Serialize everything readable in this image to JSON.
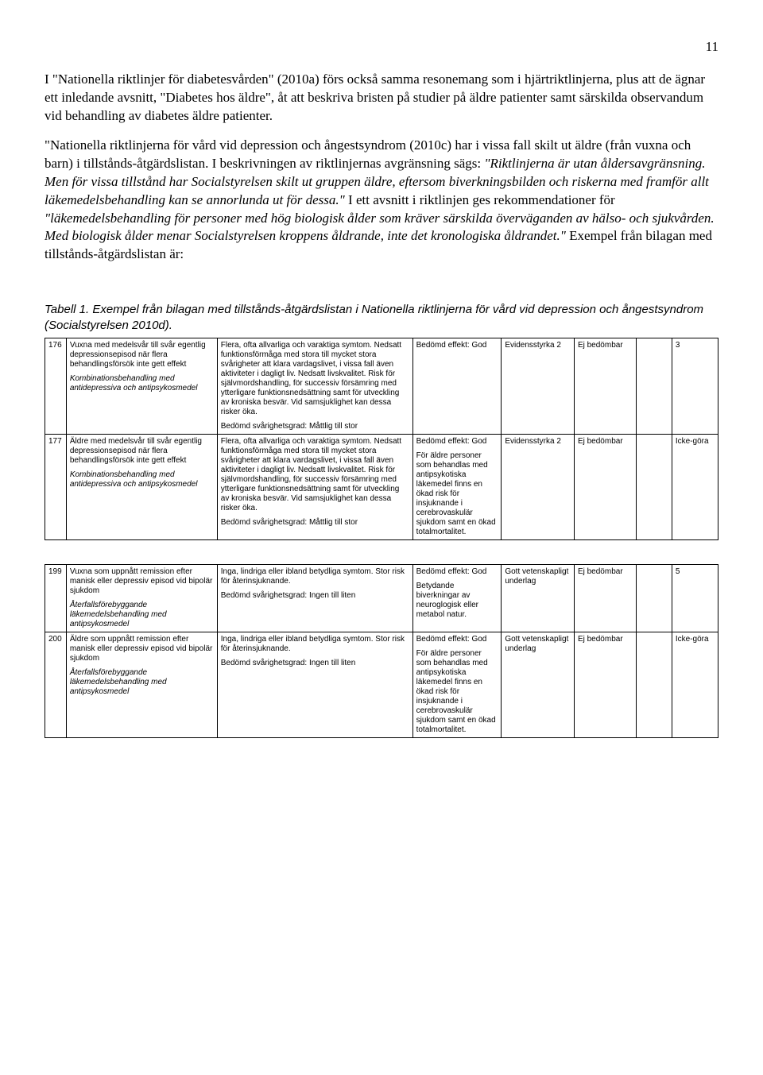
{
  "page_number": "11",
  "para1_a": "I \"Nationella riktlinjer för diabetesvården\" (2010a) förs också samma resonemang som i hjärtriktlinjerna, plus att de ägnar ett inledande avsnitt, \"Diabetes hos äldre\", åt att beskriva bristen på studier på äldre patienter samt särskilda observandum vid behandling av diabetes äldre patienter.",
  "para2_a": "\"Nationella riktlinjerna för vård vid depression och ångestsyndrom (2010c) har i vissa fall skilt ut äldre (från vuxna och barn) i tillstånds-åtgärdslistan. I beskrivningen av riktlinjernas avgränsning sägs: ",
  "para2_b": "\"Riktlinjerna är utan åldersavgränsning. Men för vissa tillstånd har Socialstyrelsen skilt ut gruppen äldre, eftersom biverkningsbilden och riskerna med framför allt läkemedelsbehandling kan se annorlunda ut för dessa.\"",
  "para2_c": " I ett avsnitt i riktlinjen ges rekommendationer för ",
  "para2_d": "\"läkemedelsbehandling för personer med hög biologisk ålder som kräver särskilda överväganden av hälso- och sjukvården. Med biologisk ålder menar Socialstyrelsen kroppens åldrande, inte det kronologiska åldrandet.\"",
  "para2_e": " Exempel från bilagan med tillstånds-åtgärdslistan är:",
  "table_caption": "Tabell 1. Exempel från bilagan med tillstånds-åtgärdslistan i Nationella riktlinjerna för vård vid depression och ångestsyndrom (Socialstyrelsen 2010d).",
  "t1": {
    "r1": {
      "num": "176",
      "a1": "Vuxna med medelsvår till svår egentlig depressionsepisod när flera behandlingsförsök inte gett effekt",
      "a2": "Kombinationsbehandling med antidepressiva och antipsykosmedel",
      "b1": "Flera, ofta allvarliga och varaktiga symtom. Nedsatt funktionsförmåga med stora till mycket stora svårigheter att klara vardagslivet, i vissa fall även aktiviteter i dagligt liv. Nedsatt livskvalitet. Risk för självmordshandling, för successiv försämring med ytterligare funktionsnedsättning samt för utveckling av kroniska besvär. Vid samsjuklighet kan dessa risker öka.",
      "b2": "Bedömd svårighetsgrad: Måttlig till stor",
      "c": "Bedömd effekt: God",
      "d": "Evidensstyrka 2",
      "e": "Ej bedömbar",
      "f": "",
      "g": "3"
    },
    "r2": {
      "num": "177",
      "a1": "Äldre med medelsvår till svår egentlig depressionsepisod när flera behandlingsförsök inte gett effekt",
      "a2": "Kombinationsbehandling med antidepressiva och antipsykosmedel",
      "b1": "Flera, ofta allvarliga och varaktiga symtom. Nedsatt funktionsförmåga med stora till mycket stora svårigheter att klara vardagslivet, i vissa fall även aktiviteter i dagligt liv. Nedsatt livskvalitet. Risk för självmordshandling, för successiv försämring med ytterligare funktionsnedsättning samt för utveckling av kroniska besvär. Vid samsjuklighet kan dessa risker öka.",
      "b2": "Bedömd svårighetsgrad: Måttlig till stor",
      "c1": "Bedömd effekt: God",
      "c2": "För äldre personer som behandlas med antipsykotiska läkemedel finns en ökad risk för insjuknande i cerebrovaskulär sjukdom samt en ökad totalmortalitet.",
      "d": "Evidensstyrka 2",
      "e": "Ej bedömbar",
      "f": "",
      "g": "Icke-göra"
    }
  },
  "t2": {
    "r1": {
      "num": "199",
      "a1": "Vuxna som uppnått remission efter manisk eller depressiv episod vid bipolär sjukdom",
      "a2": "Återfallsförebyggande läkemedelsbehandling med antipsykosmedel",
      "b1": "Inga, lindriga eller ibland betydliga symtom. Stor risk för återinsjuknande.",
      "b2": "Bedömd svårighetsgrad: Ingen till liten",
      "c1": "Bedömd effekt: God",
      "c2": "Betydande biverkningar av neuroglogisk eller metabol natur.",
      "d": "Gott vetenskapligt underlag",
      "e": "Ej bedömbar",
      "f": "",
      "g": "5"
    },
    "r2": {
      "num": "200",
      "a1": "Äldre som uppnått remission efter manisk eller depressiv episod vid bipolär sjukdom",
      "a2": "Återfallsförebyggande läkemedelsbehandling med antipsykosmedel",
      "b1": "Inga, lindriga eller ibland betydliga symtom. Stor risk för återinsjuknande.",
      "b2": "Bedömd svårighetsgrad: Ingen till liten",
      "c1": "Bedömd effekt: God",
      "c2": "För äldre personer som behandlas med antipsykotiska läkemedel finns en ökad risk för insjuknande i cerebrovaskulär sjukdom samt en ökad totalmortalitet.",
      "d": "Gott vetenskapligt underlag",
      "e": "Ej bedömbar",
      "f": "",
      "g": "Icke-göra"
    }
  }
}
